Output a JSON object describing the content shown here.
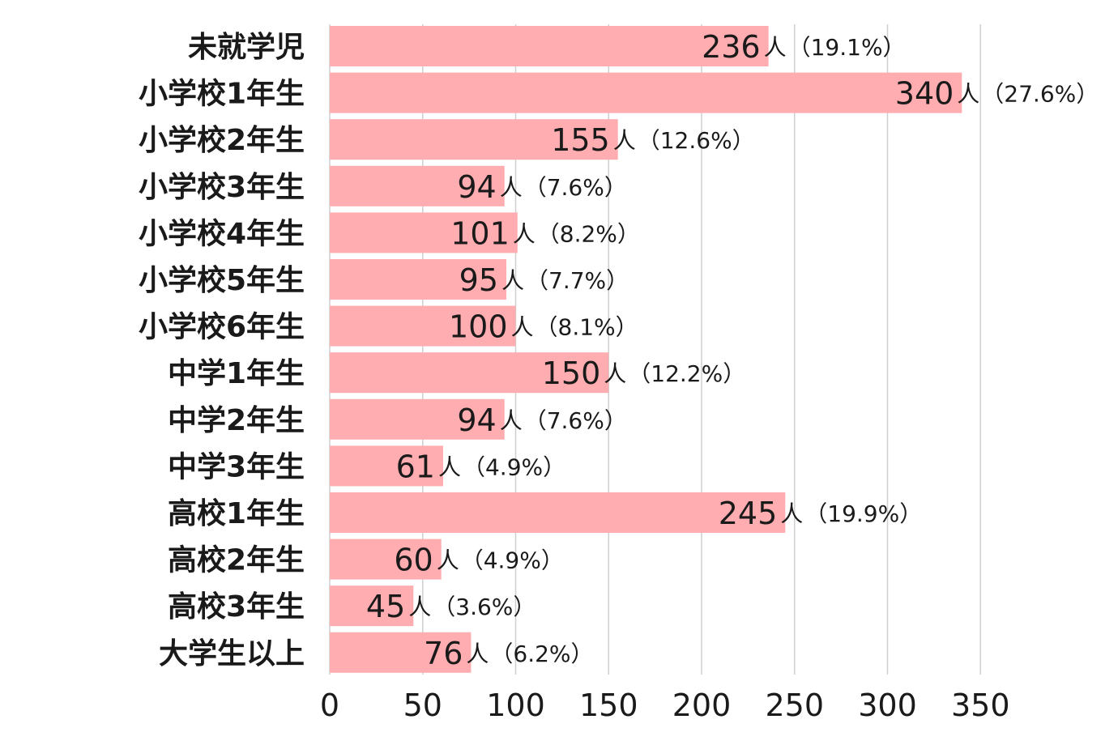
{
  "chart_data": {
    "type": "bar",
    "orientation": "horizontal",
    "categories": [
      "未就学児",
      "小学校1年生",
      "小学校2年生",
      "小学校3年生",
      "小学校4年生",
      "小学校5年生",
      "小学校6年生",
      "中学1年生",
      "中学2年生",
      "中学3年生",
      "高校1年生",
      "高校2年生",
      "高校3年生",
      "大学生以上"
    ],
    "values": [
      236,
      340,
      155,
      94,
      101,
      95,
      100,
      150,
      94,
      61,
      245,
      60,
      45,
      76
    ],
    "percent_labels": [
      "（19.1%）",
      "（27.6%）",
      "（12.6%）",
      "（7.6%）",
      "（8.2%）",
      "（7.7%）",
      "（8.1%）",
      "（12.2%）",
      "（7.6%）",
      "（4.9%）",
      "（19.9%）",
      "（4.9%）",
      "（3.6%）",
      "（6.2%）"
    ],
    "unit": "人",
    "x_ticks": [
      0,
      50,
      100,
      150,
      200,
      250,
      300,
      350
    ],
    "xlim": [
      0,
      350
    ],
    "title": "",
    "xlabel": "",
    "ylabel": "",
    "grid": "vertical",
    "legend": "none",
    "bar_color": "#ffadb0"
  }
}
